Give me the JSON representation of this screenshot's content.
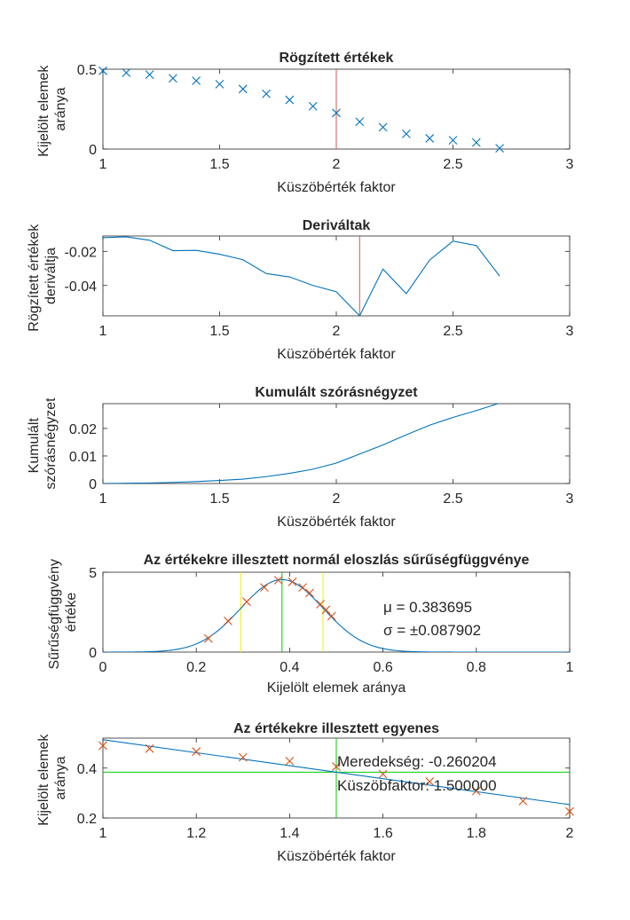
{
  "chart_data": [
    {
      "type": "scatter",
      "title": "Rögzített értékek",
      "xlabel": "Küszöbérték faktor",
      "ylabel": [
        "Kijelölt elemek",
        "aránya"
      ],
      "xlim": [
        1,
        3
      ],
      "ylim": [
        0,
        0.5
      ],
      "xticks": [
        1,
        1.5,
        2,
        2.5,
        3
      ],
      "yticks": [
        0,
        0.5
      ],
      "xtick_labels": [
        "1",
        "1.5",
        "2",
        "2.5",
        "3"
      ],
      "ytick_labels": [
        "0",
        "0.5"
      ],
      "series": [
        {
          "marker": "x",
          "color": "#0072bd",
          "x": [
            1.0,
            1.1,
            1.2,
            1.3,
            1.4,
            1.5,
            1.6,
            1.7,
            1.8,
            1.9,
            2.0,
            2.1,
            2.2,
            2.3,
            2.4,
            2.5,
            2.6,
            2.7
          ],
          "y": [
            0.49,
            0.478,
            0.466,
            0.443,
            0.428,
            0.406,
            0.376,
            0.346,
            0.308,
            0.268,
            0.226,
            0.171,
            0.137,
            0.095,
            0.067,
            0.055,
            0.041,
            0.005
          ]
        }
      ],
      "vlines": [
        {
          "x": 2.0,
          "color": "#d9534f"
        }
      ]
    },
    {
      "type": "line",
      "title": "Deriváltak",
      "xlabel": "Küszöbérték faktor",
      "ylabel": [
        "Rögzített értékek",
        "deriváltja"
      ],
      "xlim": [
        1,
        3
      ],
      "ylim": [
        -0.0578,
        -0.011
      ],
      "xticks": [
        1,
        1.5,
        2,
        2.5,
        3
      ],
      "yticks": [
        -0.04,
        -0.02
      ],
      "xtick_labels": [
        "1",
        "1.5",
        "2",
        "2.5",
        "3"
      ],
      "ytick_labels": [
        "-0.04",
        "-0.02"
      ],
      "series": [
        {
          "color": "#0072bd",
          "x": [
            1.0,
            1.1,
            1.2,
            1.3,
            1.4,
            1.5,
            1.6,
            1.7,
            1.8,
            1.9,
            2.0,
            2.1,
            2.2,
            2.3,
            2.4,
            2.5,
            2.6,
            2.7
          ],
          "y": [
            -0.012,
            -0.0115,
            -0.0135,
            -0.0196,
            -0.0194,
            -0.0217,
            -0.0249,
            -0.033,
            -0.035,
            -0.04,
            -0.0437,
            -0.0578,
            -0.0304,
            -0.0448,
            -0.0251,
            -0.014,
            -0.0166,
            -0.0345
          ]
        }
      ],
      "vlines": [
        {
          "x": 2.1,
          "color": "#d9534f"
        }
      ]
    },
    {
      "type": "line",
      "title": "Kumulált szórásnégyzet",
      "xlabel": "Küszöbérték faktor",
      "ylabel": [
        "Kumulált",
        "szórásnégyzet"
      ],
      "xlim": [
        1,
        3
      ],
      "ylim": [
        0,
        0.029
      ],
      "xticks": [
        1,
        1.5,
        2,
        2.5,
        3
      ],
      "yticks": [
        0,
        0.01,
        0.02
      ],
      "xtick_labels": [
        "1",
        "1.5",
        "2",
        "2.5",
        "3"
      ],
      "ytick_labels": [
        "0",
        "0.01",
        "0.02"
      ],
      "series": [
        {
          "color": "#0072bd",
          "x": [
            1.0,
            1.1,
            1.2,
            1.3,
            1.4,
            1.5,
            1.6,
            1.7,
            1.8,
            1.9,
            2.0,
            2.1,
            2.2,
            2.3,
            2.4,
            2.5,
            2.6,
            2.7
          ],
          "y": [
            0.0,
            0.0001,
            0.0002,
            0.0004,
            0.0007,
            0.0011,
            0.0016,
            0.0025,
            0.0037,
            0.0052,
            0.0074,
            0.0107,
            0.014,
            0.0177,
            0.0212,
            0.024,
            0.0265,
            0.0292
          ]
        }
      ]
    },
    {
      "type": "line",
      "title": "Az értékekre illesztett normál eloszlás sűrűségfüggvénye",
      "xlabel": "Kijelölt elemek aránya",
      "ylabel": [
        "Sűrűségfüggvény",
        "értéke"
      ],
      "xlim": [
        0,
        1
      ],
      "ylim": [
        0,
        5
      ],
      "xticks": [
        0,
        0.2,
        0.4,
        0.6,
        0.8,
        1
      ],
      "yticks": [
        0,
        5
      ],
      "xtick_labels": [
        "0",
        "0.2",
        "0.4",
        "0.6",
        "0.8",
        "1"
      ],
      "ytick_labels": [
        "0",
        "5"
      ],
      "normal_fit": {
        "mu": 0.383695,
        "sigma": 0.087902,
        "color": "#0072bd"
      },
      "points": {
        "marker": "x",
        "color": "#d95319",
        "x": [
          0.226,
          0.268,
          0.308,
          0.346,
          0.376,
          0.406,
          0.428,
          0.443,
          0.466,
          0.478,
          0.49
        ],
        "y": [
          0.85,
          1.95,
          3.15,
          4.05,
          4.5,
          4.4,
          4.05,
          3.7,
          3.0,
          2.65,
          2.25
        ]
      },
      "vlines": [
        {
          "x": 0.383695,
          "color": "#00cc00"
        },
        {
          "x": 0.295793,
          "color": "#eeee00"
        },
        {
          "x": 0.471597,
          "color": "#eeee00"
        }
      ],
      "annotations": [
        "μ = 0.383695",
        "σ = ±0.087902"
      ]
    },
    {
      "type": "scatter",
      "title": "Az értékekre illesztett egyenes",
      "xlabel": "Küszöbérték faktor",
      "ylabel": [
        "Kijelölt elemek",
        "aránya"
      ],
      "xlim": [
        1,
        2
      ],
      "ylim": [
        0.2,
        0.52
      ],
      "xticks": [
        1,
        1.2,
        1.4,
        1.6,
        1.8,
        2
      ],
      "yticks": [
        0.2,
        0.4
      ],
      "xtick_labels": [
        "1",
        "1.2",
        "1.4",
        "1.6",
        "1.8",
        "2"
      ],
      "ytick_labels": [
        "0.2",
        "0.4"
      ],
      "points": {
        "marker": "x",
        "color": "#d95319",
        "x": [
          1.0,
          1.1,
          1.2,
          1.3,
          1.4,
          1.5,
          1.6,
          1.7,
          1.8,
          1.9,
          2.0
        ],
        "y": [
          0.49,
          0.478,
          0.466,
          0.443,
          0.428,
          0.406,
          0.376,
          0.346,
          0.308,
          0.268,
          0.226
        ]
      },
      "fit_line": {
        "slope": -0.260204,
        "intercept": 0.77386,
        "color": "#0072bd"
      },
      "hline": {
        "y": 0.383695,
        "color": "#00cc00"
      },
      "vlines": [
        {
          "x": 1.5,
          "color": "#00cc00"
        }
      ],
      "annotations": [
        "Meredekség: -0.260204",
        "Küszöbfaktor: 1.500000"
      ]
    }
  ]
}
